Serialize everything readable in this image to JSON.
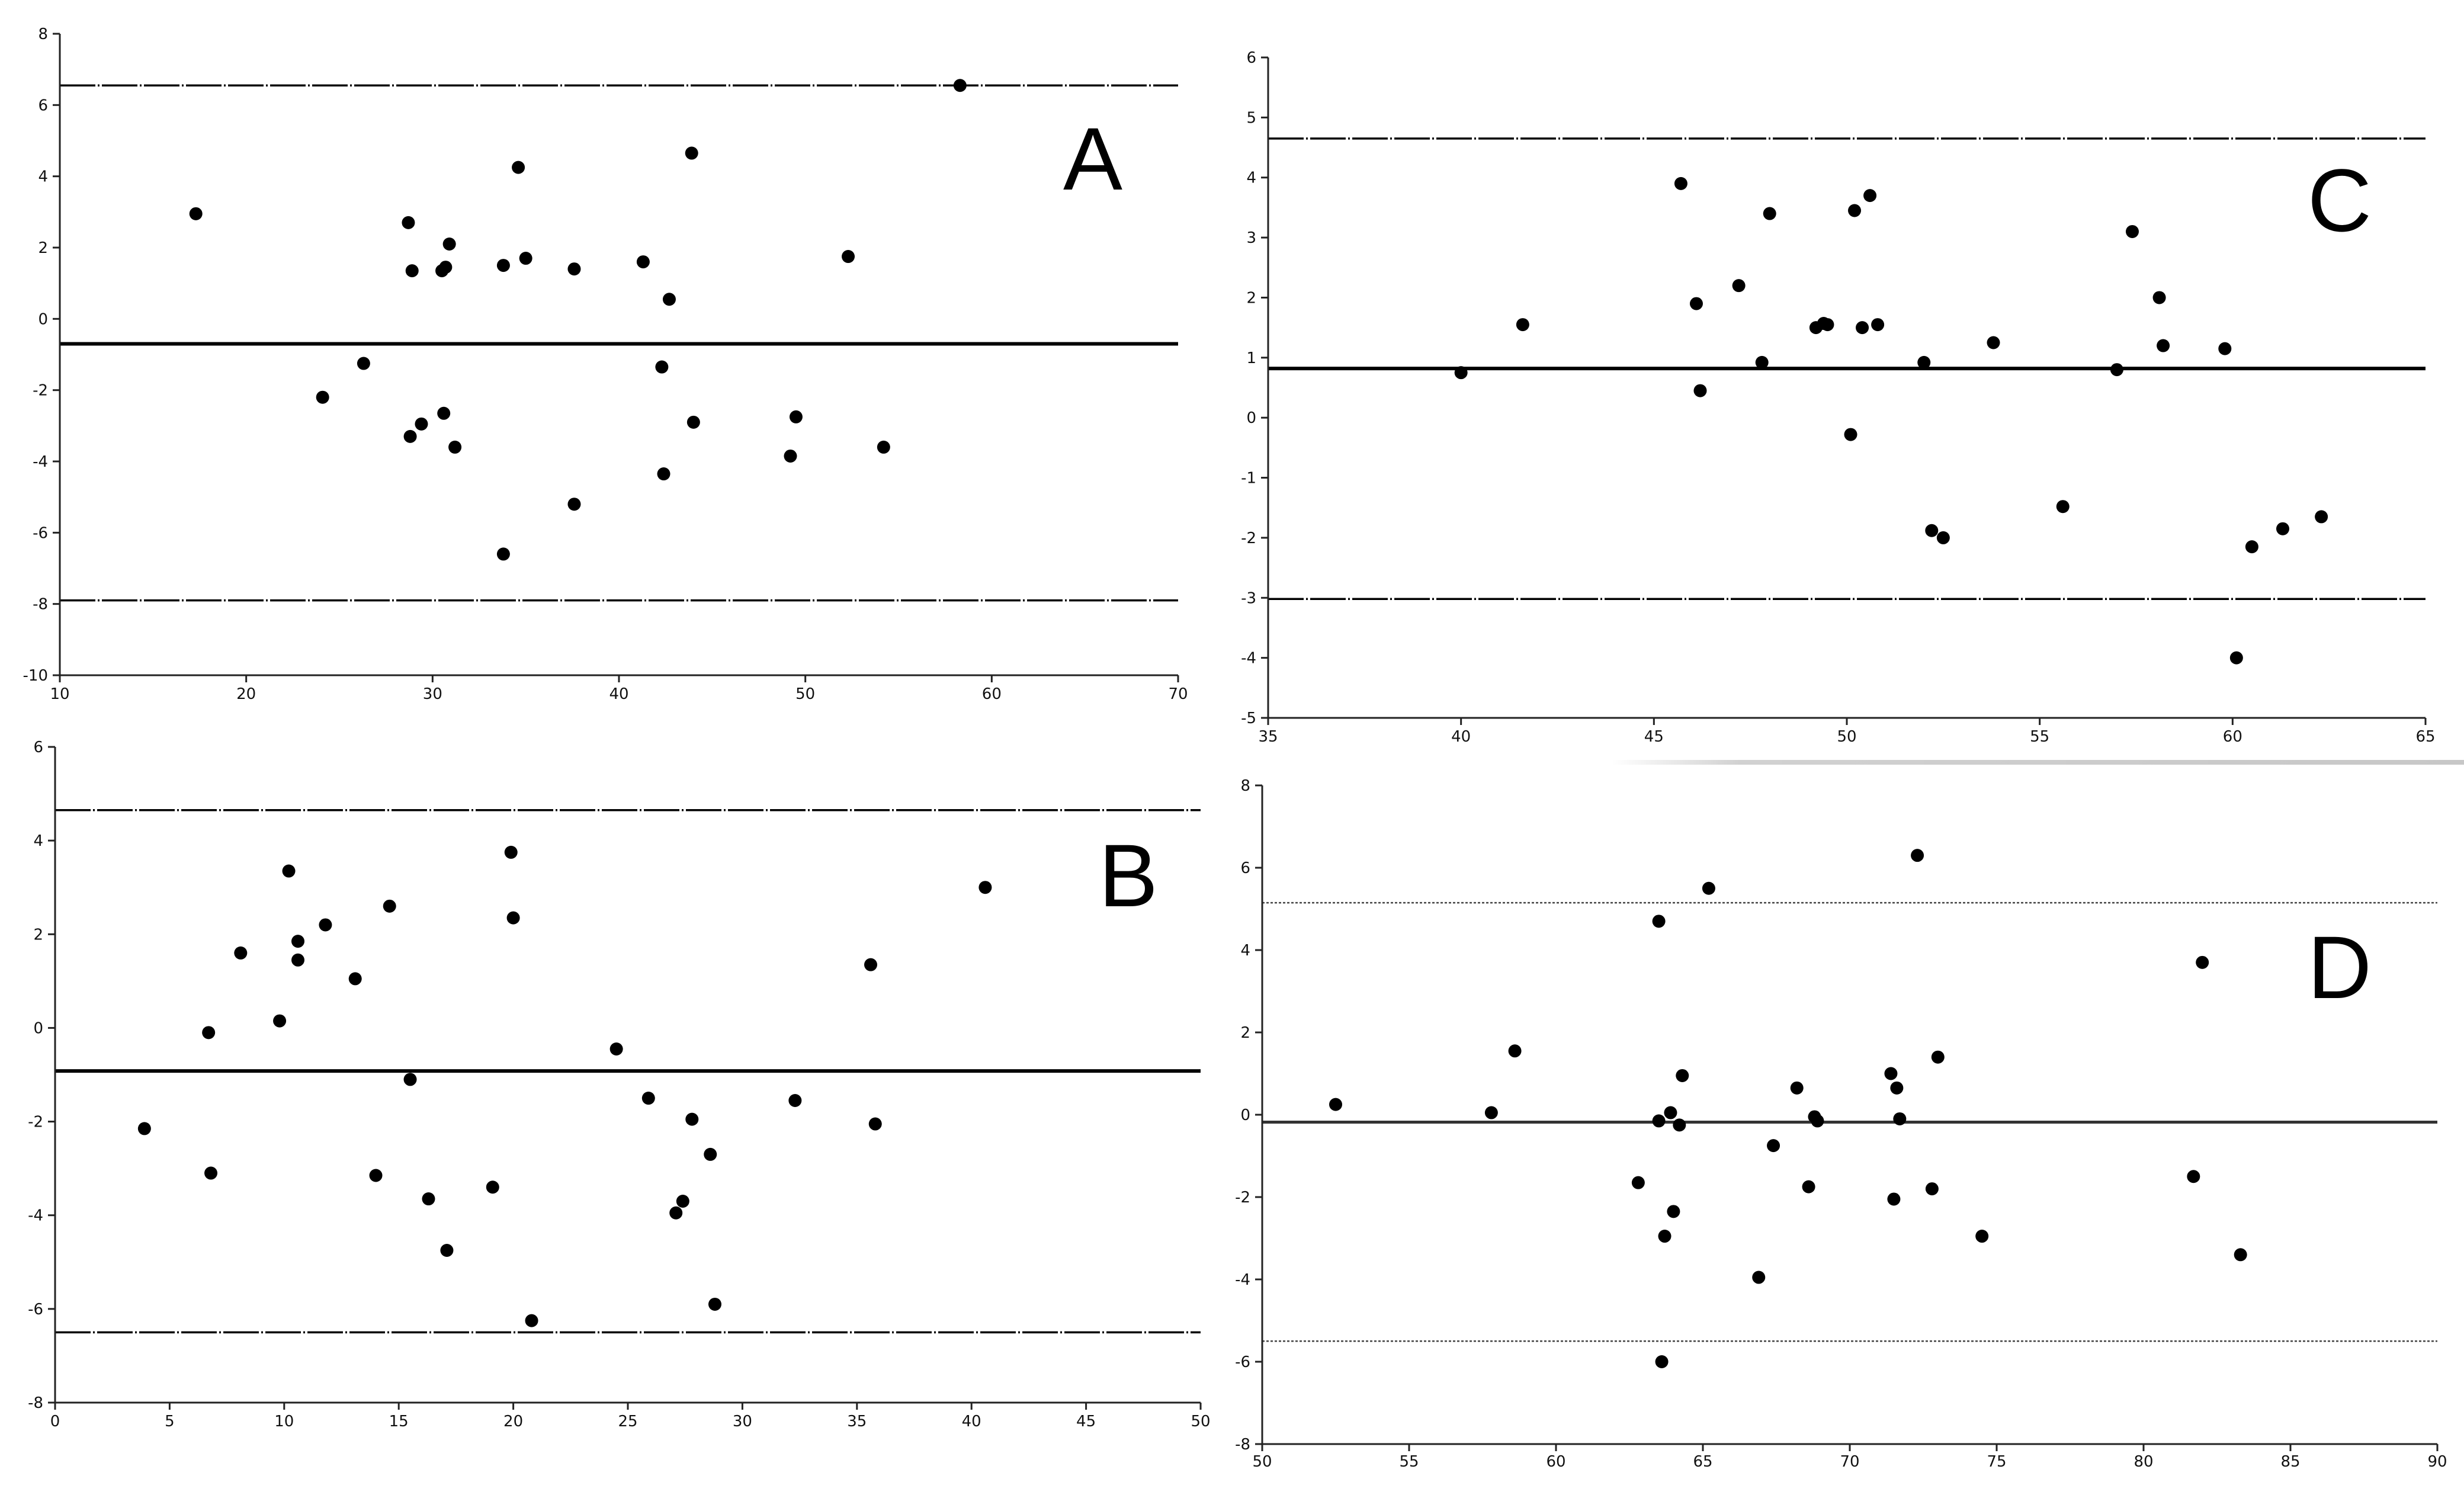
{
  "chart_data": [
    {
      "id": "A",
      "type": "scatter",
      "panel_label": "A",
      "title": "",
      "xlabel": "",
      "ylabel": "",
      "xlim": [
        10,
        70
      ],
      "ylim": [
        -10,
        8
      ],
      "x_ticks": [
        10,
        20,
        30,
        40,
        50,
        60,
        70
      ],
      "y_ticks": [
        -10,
        -8,
        -6,
        -4,
        -2,
        0,
        2,
        4,
        6,
        8
      ],
      "grid": false,
      "reference_lines": [
        {
          "y": -0.7,
          "style": "solid-thick"
        },
        {
          "y": 6.55,
          "style": "dash-dot"
        },
        {
          "y": -7.9,
          "style": "dash-dot"
        }
      ],
      "points": [
        [
          17.3,
          2.95
        ],
        [
          24.1,
          -2.2
        ],
        [
          26.3,
          -1.25
        ],
        [
          28.7,
          2.7
        ],
        [
          28.9,
          1.35
        ],
        [
          29.4,
          -2.95
        ],
        [
          28.8,
          -3.3
        ],
        [
          30.5,
          1.35
        ],
        [
          30.7,
          1.45
        ],
        [
          30.6,
          -2.65
        ],
        [
          30.9,
          2.1
        ],
        [
          31.2,
          -3.6
        ],
        [
          33.8,
          1.5
        ],
        [
          34.6,
          4.25
        ],
        [
          35.0,
          1.7
        ],
        [
          33.8,
          -6.6
        ],
        [
          37.6,
          1.4
        ],
        [
          37.6,
          -5.2
        ],
        [
          41.3,
          1.6
        ],
        [
          42.3,
          -1.35
        ],
        [
          42.7,
          0.55
        ],
        [
          42.4,
          -4.35
        ],
        [
          43.9,
          4.65
        ],
        [
          44.0,
          -2.9
        ],
        [
          49.2,
          -3.85
        ],
        [
          49.5,
          -2.75
        ],
        [
          52.3,
          1.75
        ],
        [
          54.2,
          -3.6
        ],
        [
          58.3,
          6.55
        ]
      ]
    },
    {
      "id": "B",
      "type": "scatter",
      "panel_label": "B",
      "title": "",
      "xlabel": "",
      "ylabel": "",
      "xlim": [
        0,
        50
      ],
      "ylim": [
        -8,
        6
      ],
      "x_ticks": [
        0,
        5,
        10,
        15,
        20,
        25,
        30,
        35,
        40,
        45,
        50
      ],
      "y_ticks": [
        -8,
        -6,
        -4,
        -2,
        0,
        2,
        4,
        6
      ],
      "grid": false,
      "reference_lines": [
        {
          "y": -0.92,
          "style": "solid-thick"
        },
        {
          "y": 4.65,
          "style": "dash-dot"
        },
        {
          "y": -6.5,
          "style": "dash-dot"
        }
      ],
      "points": [
        [
          3.9,
          -2.15
        ],
        [
          6.7,
          -0.1
        ],
        [
          6.8,
          -3.1
        ],
        [
          8.1,
          1.6
        ],
        [
          9.8,
          0.15
        ],
        [
          10.2,
          3.35
        ],
        [
          10.6,
          1.85
        ],
        [
          10.6,
          1.45
        ],
        [
          11.8,
          2.2
        ],
        [
          13.1,
          1.05
        ],
        [
          14.0,
          -3.15
        ],
        [
          14.6,
          2.6
        ],
        [
          15.5,
          -1.1
        ],
        [
          16.3,
          -3.65
        ],
        [
          17.1,
          -4.75
        ],
        [
          19.1,
          -3.4
        ],
        [
          19.9,
          3.75
        ],
        [
          20.0,
          2.35
        ],
        [
          20.8,
          -6.25
        ],
        [
          24.5,
          -0.45
        ],
        [
          25.9,
          -1.5
        ],
        [
          27.1,
          -3.95
        ],
        [
          27.4,
          -3.7
        ],
        [
          27.8,
          -1.95
        ],
        [
          28.6,
          -2.7
        ],
        [
          28.8,
          -5.9
        ],
        [
          32.3,
          -1.55
        ],
        [
          35.6,
          1.35
        ],
        [
          35.8,
          -2.05
        ],
        [
          40.6,
          3.0
        ]
      ]
    },
    {
      "id": "C",
      "type": "scatter",
      "panel_label": "C",
      "title": "",
      "xlabel": "",
      "ylabel": "",
      "xlim": [
        35,
        65
      ],
      "ylim": [
        -5,
        6
      ],
      "x_ticks": [
        35,
        40,
        45,
        50,
        55,
        60,
        65
      ],
      "y_ticks": [
        -5,
        -4,
        -3,
        -2,
        -1,
        0,
        1,
        2,
        3,
        4,
        5,
        6
      ],
      "grid": false,
      "reference_lines": [
        {
          "y": 0.82,
          "style": "solid-thick"
        },
        {
          "y": 4.65,
          "style": "dash-dot"
        },
        {
          "y": -3.02,
          "style": "dash-dot"
        }
      ],
      "points": [
        [
          40.0,
          0.75
        ],
        [
          41.6,
          1.55
        ],
        [
          45.7,
          3.9
        ],
        [
          46.1,
          1.9
        ],
        [
          46.2,
          0.45
        ],
        [
          47.2,
          2.2
        ],
        [
          47.8,
          0.92
        ],
        [
          48.0,
          3.4
        ],
        [
          49.2,
          1.5
        ],
        [
          49.4,
          1.57
        ],
        [
          49.5,
          1.55
        ],
        [
          50.1,
          -0.28
        ],
        [
          50.2,
          3.45
        ],
        [
          50.4,
          1.5
        ],
        [
          50.6,
          3.7
        ],
        [
          50.8,
          1.55
        ],
        [
          52.0,
          0.92
        ],
        [
          52.2,
          -1.88
        ],
        [
          52.5,
          -2.0
        ],
        [
          53.8,
          1.25
        ],
        [
          55.6,
          -1.48
        ],
        [
          57.0,
          0.8
        ],
        [
          57.4,
          3.1
        ],
        [
          58.1,
          2.0
        ],
        [
          58.2,
          1.2
        ],
        [
          59.8,
          1.15
        ],
        [
          60.1,
          -4.0
        ],
        [
          60.5,
          -2.15
        ],
        [
          61.3,
          -1.85
        ],
        [
          62.3,
          -1.65
        ]
      ]
    },
    {
      "id": "D",
      "type": "scatter",
      "panel_label": "D",
      "title": "",
      "xlabel": "",
      "ylabel": "",
      "xlim": [
        50,
        90
      ],
      "ylim": [
        -8,
        8
      ],
      "x_ticks": [
        50,
        55,
        60,
        65,
        70,
        75,
        80,
        85,
        90
      ],
      "y_ticks": [
        -8,
        -6,
        -4,
        -2,
        0,
        2,
        4,
        6,
        8
      ],
      "grid": false,
      "reference_lines": [
        {
          "y": -0.18,
          "style": "solid"
        },
        {
          "y": 5.15,
          "style": "dotted"
        },
        {
          "y": -5.5,
          "style": "dotted"
        }
      ],
      "points": [
        [
          52.5,
          0.25
        ],
        [
          57.8,
          0.05
        ],
        [
          58.6,
          1.55
        ],
        [
          62.8,
          -1.65
        ],
        [
          63.5,
          -0.15
        ],
        [
          63.5,
          4.7
        ],
        [
          63.6,
          -6.0
        ],
        [
          63.7,
          -2.95
        ],
        [
          63.9,
          0.05
        ],
        [
          64.0,
          -2.35
        ],
        [
          64.2,
          -0.25
        ],
        [
          64.3,
          0.95
        ],
        [
          65.2,
          5.5
        ],
        [
          66.9,
          -3.95
        ],
        [
          67.4,
          -0.75
        ],
        [
          68.2,
          0.65
        ],
        [
          68.6,
          -1.75
        ],
        [
          68.8,
          -0.05
        ],
        [
          68.9,
          -0.15
        ],
        [
          71.4,
          1.0
        ],
        [
          71.5,
          -2.05
        ],
        [
          71.6,
          0.65
        ],
        [
          71.7,
          -0.1
        ],
        [
          72.3,
          6.3
        ],
        [
          72.8,
          -1.8
        ],
        [
          73.0,
          1.4
        ],
        [
          74.5,
          -2.95
        ],
        [
          81.7,
          -1.5
        ],
        [
          82.0,
          3.7
        ],
        [
          83.3,
          -3.4
        ]
      ]
    }
  ]
}
